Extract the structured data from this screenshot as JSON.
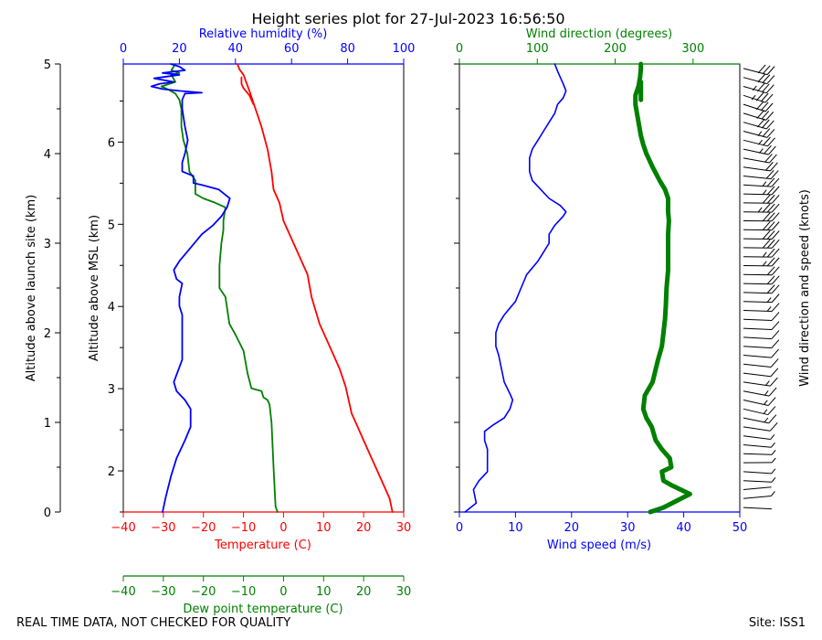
{
  "chart_data": {
    "type": "line",
    "title": "Height series plot for 27-Jul-2023 16:56:50",
    "footer_left": "REAL TIME DATA, NOT CHECKED FOR QUALITY",
    "footer_right": "Site: ISS1",
    "colors": {
      "temperature": "#ff0000",
      "dewpoint": "#008000",
      "rh": "#0000ff",
      "wind_speed": "#0000ff",
      "wind_dir": "#008000",
      "barbs": "#000000"
    },
    "left_panel": {
      "altitude_msl": {
        "label": "Altitude above MSL (km)",
        "lim": [
          1.5,
          6.95
        ],
        "ticks": [
          2,
          3,
          4,
          5,
          6
        ]
      },
      "altitude_site": {
        "label": "Altitude above launch site (km)",
        "lim": [
          0,
          5
        ],
        "ticks": [
          0,
          1,
          2,
          3,
          4,
          5
        ]
      },
      "temperature_axis": {
        "label": "Temperature (C)",
        "lim": [
          -40,
          30
        ],
        "ticks": [
          -40,
          -30,
          -20,
          -10,
          0,
          10,
          20,
          30
        ]
      },
      "dewpoint_axis": {
        "label": "Dew point temperature (C)",
        "lim": [
          -40,
          30
        ],
        "ticks": [
          -40,
          -30,
          -20,
          -10,
          0,
          10,
          20,
          30
        ]
      },
      "rh_axis": {
        "label": "Relative humidity (%)",
        "lim": [
          0,
          100
        ],
        "ticks": [
          0,
          20,
          40,
          60,
          80,
          100
        ]
      },
      "series": [
        {
          "name": "Temperature",
          "axis": "temperature",
          "points": [
            [
              27.2,
              0.0
            ],
            [
              26.5,
              0.15
            ],
            [
              24,
              0.4
            ],
            [
              22,
              0.6
            ],
            [
              20,
              0.8
            ],
            [
              18.5,
              0.95
            ],
            [
              17,
              1.1
            ],
            [
              16,
              1.3
            ],
            [
              15.5,
              1.4
            ],
            [
              14,
              1.6
            ],
            [
              12,
              1.8
            ],
            [
              9,
              2.1
            ],
            [
              7,
              2.4
            ],
            [
              6,
              2.65
            ],
            [
              4,
              2.85
            ],
            [
              2,
              3.05
            ],
            [
              0,
              3.25
            ],
            [
              -1,
              3.45
            ],
            [
              -2.5,
              3.6
            ],
            [
              -3,
              3.8
            ],
            [
              -4,
              4.05
            ],
            [
              -5.5,
              4.3
            ],
            [
              -7,
              4.5
            ],
            [
              -8.5,
              4.7
            ],
            [
              -10,
              4.88
            ],
            [
              -11,
              4.94
            ],
            [
              -11.5,
              5.0
            ]
          ]
        },
        {
          "name": "Temperature (descent)",
          "axis": "temperature",
          "points": [
            [
              -7.5,
              4.55
            ],
            [
              -8.5,
              4.65
            ],
            [
              -10,
              4.73
            ],
            [
              -10.5,
              4.78
            ],
            [
              -10.5,
              4.85
            ]
          ]
        },
        {
          "name": "Dew point",
          "axis": "dewpoint",
          "points": [
            [
              -1.5,
              0.0
            ],
            [
              -2,
              0.06
            ],
            [
              -2.5,
              0.5
            ],
            [
              -3,
              1.0
            ],
            [
              -3.5,
              1.2
            ],
            [
              -4,
              1.25
            ],
            [
              -5,
              1.28
            ],
            [
              -5.5,
              1.35
            ],
            [
              -8,
              1.38
            ],
            [
              -9,
              1.55
            ],
            [
              -10,
              1.8
            ],
            [
              -12,
              1.98
            ],
            [
              -13.5,
              2.1
            ],
            [
              -14.5,
              2.4
            ],
            [
              -16,
              2.5
            ],
            [
              -16,
              2.75
            ],
            [
              -15.5,
              3.0
            ],
            [
              -15,
              3.15
            ],
            [
              -15,
              3.25
            ],
            [
              -14.5,
              3.4
            ],
            [
              -17,
              3.45
            ],
            [
              -20,
              3.5
            ],
            [
              -22,
              3.55
            ],
            [
              -22,
              3.7
            ],
            [
              -23.5,
              3.8
            ],
            [
              -24,
              4.0
            ],
            [
              -25,
              4.15
            ],
            [
              -25.5,
              4.3
            ],
            [
              -25.5,
              4.5
            ],
            [
              -26,
              4.6
            ],
            [
              -27,
              4.67
            ],
            [
              -29,
              4.72
            ],
            [
              -30.5,
              4.75
            ],
            [
              -27,
              4.8
            ],
            [
              -28,
              4.88
            ],
            [
              -26,
              4.9
            ],
            [
              -28,
              4.93
            ],
            [
              -27,
              5.0
            ]
          ]
        },
        {
          "name": "Relative humidity",
          "axis": "rh",
          "points": [
            [
              14,
              0.0
            ],
            [
              15,
              0.15
            ],
            [
              17,
              0.4
            ],
            [
              19,
              0.6
            ],
            [
              22,
              0.8
            ],
            [
              24,
              0.95
            ],
            [
              24,
              1.15
            ],
            [
              23,
              1.2
            ],
            [
              22,
              1.25
            ],
            [
              19,
              1.35
            ],
            [
              18,
              1.45
            ],
            [
              21,
              1.7
            ],
            [
              21,
              1.95
            ],
            [
              21,
              2.1
            ],
            [
              21,
              2.2
            ],
            [
              20,
              2.3
            ],
            [
              20,
              2.4
            ],
            [
              21,
              2.55
            ],
            [
              19,
              2.6
            ],
            [
              18,
              2.7
            ],
            [
              20,
              2.8
            ],
            [
              24,
              2.95
            ],
            [
              28,
              3.1
            ],
            [
              32,
              3.2
            ],
            [
              35,
              3.3
            ],
            [
              37,
              3.4
            ],
            [
              38,
              3.5
            ],
            [
              36,
              3.55
            ],
            [
              34,
              3.6
            ],
            [
              28,
              3.65
            ],
            [
              25,
              3.67
            ],
            [
              25,
              3.75
            ],
            [
              21,
              3.8
            ],
            [
              21,
              3.9
            ],
            [
              22,
              4.0
            ],
            [
              23,
              4.15
            ],
            [
              22,
              4.3
            ],
            [
              21,
              4.5
            ],
            [
              21,
              4.6
            ],
            [
              22,
              4.67
            ],
            [
              28,
              4.68
            ],
            [
              20,
              4.7
            ],
            [
              14,
              4.72
            ],
            [
              10,
              4.75
            ],
            [
              13,
              4.78
            ],
            [
              18,
              4.8
            ],
            [
              11,
              4.84
            ],
            [
              20,
              4.88
            ],
            [
              14,
              4.9
            ],
            [
              22,
              4.93
            ],
            [
              20,
              4.97
            ],
            [
              17,
              5.0
            ]
          ]
        }
      ]
    },
    "right_panel": {
      "wind_speed_axis": {
        "label": "Wind speed (m/s)",
        "lim": [
          0,
          50
        ],
        "ticks": [
          0,
          10,
          20,
          30,
          40,
          50
        ]
      },
      "wind_dir_axis": {
        "label": "Wind direction (degrees)",
        "lim": [
          0,
          360
        ],
        "ticks": [
          0,
          100,
          200,
          300
        ]
      },
      "barbs_label": "Wind direction and speed (knots)",
      "series": [
        {
          "name": "Wind speed",
          "axis": "wind_speed",
          "points": [
            [
              1,
              0.0
            ],
            [
              3,
              0.1
            ],
            [
              2.5,
              0.25
            ],
            [
              3.5,
              0.35
            ],
            [
              5,
              0.45
            ],
            [
              5,
              0.55
            ],
            [
              5,
              0.7
            ],
            [
              4.5,
              0.8
            ],
            [
              4.5,
              0.9
            ],
            [
              6,
              0.97
            ],
            [
              8,
              1.05
            ],
            [
              9,
              1.15
            ],
            [
              9.5,
              1.25
            ],
            [
              9,
              1.32
            ],
            [
              8,
              1.45
            ],
            [
              7.5,
              1.6
            ],
            [
              7,
              1.75
            ],
            [
              6.5,
              1.85
            ],
            [
              6.5,
              2.0
            ],
            [
              7,
              2.1
            ],
            [
              8,
              2.2
            ],
            [
              10,
              2.35
            ],
            [
              11,
              2.5
            ],
            [
              12,
              2.65
            ],
            [
              14,
              2.8
            ],
            [
              15,
              2.9
            ],
            [
              16,
              3.0
            ],
            [
              16,
              3.1
            ],
            [
              17,
              3.2
            ],
            [
              18.5,
              3.3
            ],
            [
              19,
              3.35
            ],
            [
              18,
              3.42
            ],
            [
              16,
              3.5
            ],
            [
              14.5,
              3.6
            ],
            [
              13,
              3.7
            ],
            [
              12.5,
              3.8
            ],
            [
              12.5,
              3.95
            ],
            [
              13,
              4.05
            ],
            [
              14,
              4.15
            ],
            [
              15,
              4.25
            ],
            [
              16,
              4.35
            ],
            [
              17,
              4.45
            ],
            [
              17.5,
              4.55
            ],
            [
              18.5,
              4.62
            ],
            [
              19,
              4.7
            ],
            [
              18.5,
              4.78
            ],
            [
              18,
              4.85
            ],
            [
              17.5,
              4.92
            ],
            [
              17,
              5.0
            ]
          ]
        },
        {
          "name": "Wind direction",
          "axis": "wind_dir",
          "points": [
            [
              245,
              0.0
            ],
            [
              262,
              0.05
            ],
            [
              296,
              0.2
            ],
            [
              272,
              0.3
            ],
            [
              262,
              0.35
            ],
            [
              260,
              0.45
            ],
            [
              272,
              0.5
            ],
            [
              270,
              0.6
            ],
            [
              260,
              0.7
            ],
            [
              252,
              0.8
            ],
            [
              247,
              0.95
            ],
            [
              240,
              1.05
            ],
            [
              236,
              1.15
            ],
            [
              238,
              1.3
            ],
            [
              248,
              1.45
            ],
            [
              255,
              1.7
            ],
            [
              260,
              1.85
            ],
            [
              262,
              2.0
            ],
            [
              264,
              2.15
            ],
            [
              265,
              2.3
            ],
            [
              266,
              2.5
            ],
            [
              268,
              2.7
            ],
            [
              268,
              2.9
            ],
            [
              268,
              3.1
            ],
            [
              269,
              3.25
            ],
            [
              268,
              3.35
            ],
            [
              268,
              3.5
            ],
            [
              264,
              3.6
            ],
            [
              257,
              3.7
            ],
            [
              248,
              3.85
            ],
            [
              240,
              4.0
            ],
            [
              236,
              4.1
            ],
            [
              233,
              4.2
            ],
            [
              230,
              4.35
            ],
            [
              228,
              4.45
            ],
            [
              226,
              4.55
            ],
            [
              226,
              4.65
            ],
            [
              230,
              4.75
            ],
            [
              232,
              4.85
            ],
            [
              233,
              4.95
            ],
            [
              233,
              5.0
            ]
          ]
        },
        {
          "name": "Wind direction (descent)",
          "axis": "wind_dir",
          "points": [
            [
              233,
              4.6
            ],
            [
              233,
              4.7
            ],
            [
              233,
              4.8
            ]
          ]
        }
      ]
    }
  }
}
